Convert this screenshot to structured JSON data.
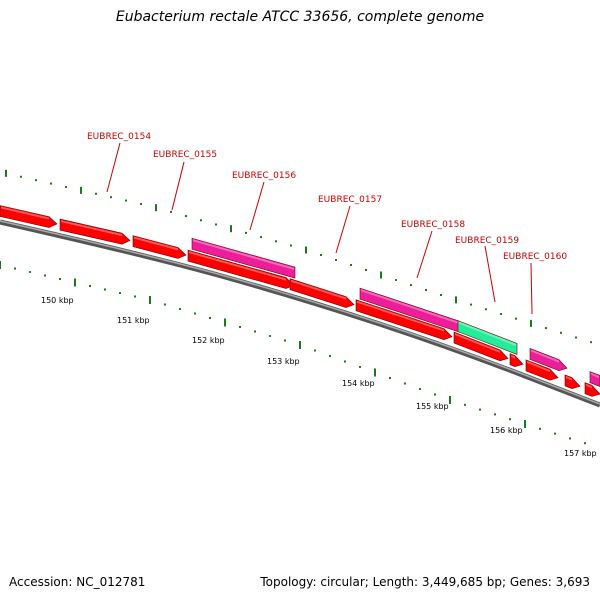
{
  "title": "Eubacterium rectale ATCC 33656, complete genome",
  "footer": {
    "accession": "Accession: NC_012781",
    "summary": "Topology: circular; Length: 3,449,685 bp; Genes: 3,693"
  },
  "colors": {
    "cds_red": "#ff0000",
    "cds_pink": "#ee1e9a",
    "cds_green": "#22ee99",
    "tick_green": "#1a7a1a",
    "backbone": "#777777",
    "label_red": "#cc0000"
  },
  "gene_labels": [
    {
      "text": "EUBREC_0154"
    },
    {
      "text": "EUBREC_0155"
    },
    {
      "text": "EUBREC_0156"
    },
    {
      "text": "EUBREC_0157"
    },
    {
      "text": "EUBREC_0158"
    },
    {
      "text": "EUBREC_0159"
    },
    {
      "text": "EUBREC_0160"
    }
  ],
  "kbp_labels": [
    "150 kbp",
    "151 kbp",
    "152 kbp",
    "153 kbp",
    "154 kbp",
    "155 kbp",
    "156 kbp",
    "157 kbp"
  ]
}
